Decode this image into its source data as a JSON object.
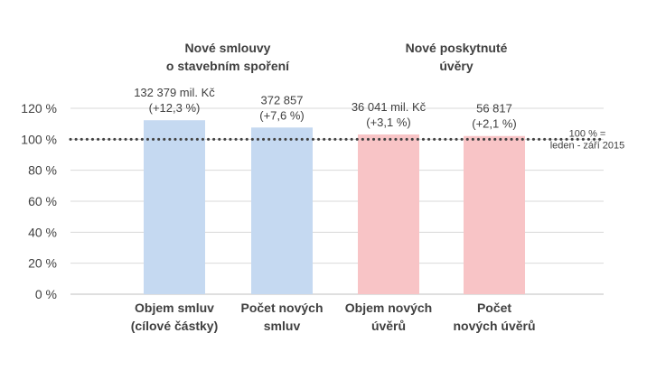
{
  "chart_data": {
    "type": "bar",
    "categories": [
      [
        "Objem smluv",
        "(cílové částky)"
      ],
      [
        "Počet  nových",
        "smluv"
      ],
      [
        "Objem nových",
        "úvěrů"
      ],
      [
        "Počet",
        "nových úvěrů"
      ]
    ],
    "values": [
      112.3,
      107.6,
      103.1,
      102.1
    ],
    "data_labels": [
      [
        "132 379 mil. Kč",
        "(+12,3 %)"
      ],
      [
        "372 857",
        "(+7,6 %)"
      ],
      [
        "36 041 mil. Kč",
        "(+3,1 %)"
      ],
      [
        "56 817",
        "(+2,1 %)"
      ]
    ],
    "bar_colors": [
      "#c5d9f1",
      "#c5d9f1",
      "#f8c4c6",
      "#f8c4c6"
    ],
    "group_labels": [
      {
        "lines": [
          "Nové smlouvy",
          "o stavebním spoření"
        ],
        "categories": [
          0,
          1
        ]
      },
      {
        "lines": [
          "Nové poskytnuté",
          "úvěry"
        ],
        "categories": [
          2,
          3
        ]
      }
    ],
    "y_ticks": [
      "0 %",
      "20 %",
      "40 %",
      "60 %",
      "80 %",
      "100 %",
      "120 %"
    ],
    "ylim": [
      0,
      120
    ],
    "reference_line": {
      "value": 100,
      "label": [
        "100 % =",
        "leden - září 2015"
      ],
      "style": "dotted",
      "color": "#404040"
    },
    "grid": true,
    "grid_color": "#d9d9d9",
    "title": "",
    "xlabel": "",
    "ylabel": ""
  }
}
